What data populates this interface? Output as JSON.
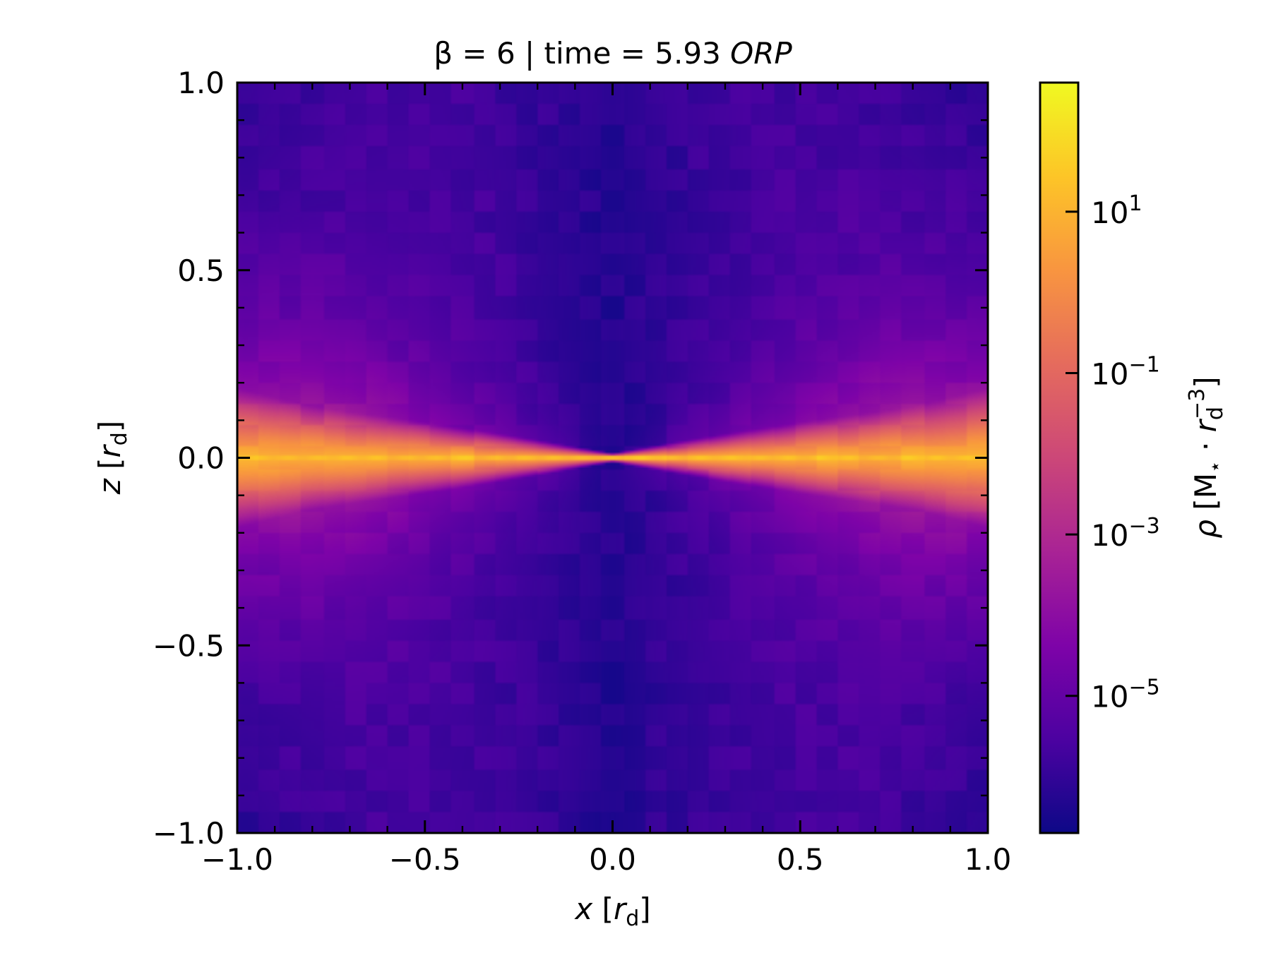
{
  "chart_data": {
    "type": "heatmap",
    "title": {
      "prefix": "β = 6 | time = 5.93 ",
      "suffix": "ORP"
    },
    "xlabel": {
      "var": "x",
      "open": " [",
      "sub_base": "r",
      "sub": "d",
      "close": "]"
    },
    "ylabel": {
      "var": "z",
      "open": " [",
      "sub_base": "r",
      "sub": "d",
      "close": "]"
    },
    "xlim": [
      -1.0,
      1.0
    ],
    "ylim": [
      -1.0,
      1.0
    ],
    "xticks": [
      {
        "value": -1.0,
        "label": "−1.0"
      },
      {
        "value": -0.5,
        "label": "−0.5"
      },
      {
        "value": 0.0,
        "label": "0.0"
      },
      {
        "value": 0.5,
        "label": "0.5"
      },
      {
        "value": 1.0,
        "label": "1.0"
      }
    ],
    "yticks": [
      {
        "value": -1.0,
        "label": "−1.0"
      },
      {
        "value": -0.5,
        "label": "−0.5"
      },
      {
        "value": 0.0,
        "label": "0.0"
      },
      {
        "value": 0.5,
        "label": "0.5"
      },
      {
        "value": 1.0,
        "label": "1.0"
      }
    ],
    "minor_tick_step": 0.1,
    "colormap": "plasma",
    "colorbar": {
      "scale": "log",
      "range_log10": [
        -6.7,
        2.6
      ],
      "ticks": [
        {
          "exp": 1,
          "base": "10",
          "sup": "1"
        },
        {
          "exp": -1,
          "base": "10",
          "sup": "−1"
        },
        {
          "exp": -3,
          "base": "10",
          "sup": "−3"
        },
        {
          "exp": -5,
          "base": "10",
          "sup": "−5"
        }
      ],
      "label": {
        "rho": "ρ",
        "text1": " [M",
        "star": "⋆",
        "dot": " · ",
        "r": "r",
        "sub": "d",
        "sup": "−3",
        "close": "]"
      }
    },
    "density_field": {
      "units": "log10(ρ)",
      "background_log10": -6.3,
      "midplane_peak_log10": 1.4,
      "disk_half_thickness_z": 0.07,
      "structure": "thin dense disk along z = 0 with a broad lower-density envelope spreading toward larger |x|"
    }
  }
}
